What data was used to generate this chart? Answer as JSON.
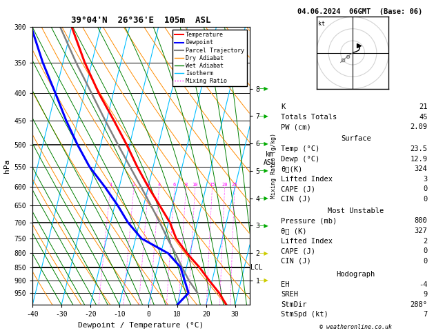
{
  "title_left": "39°04'N  26°36'E  105m  ASL",
  "title_right": "04.06.2024  06GMT  (Base: 06)",
  "xlabel": "Dewpoint / Temperature (°C)",
  "ylabel_left": "hPa",
  "ylabel_right_top": "km",
  "ylabel_right_bottom": "ASL",
  "ylabel_mixing": "Mixing Ratio (g/kg)",
  "pressure_levels": [
    300,
    350,
    400,
    450,
    500,
    550,
    600,
    650,
    700,
    750,
    800,
    850,
    900,
    950
  ],
  "temp_color": "#ff0000",
  "dewp_color": "#0000ff",
  "parcel_color": "#808080",
  "dry_adiabat_color": "#ff8c00",
  "wet_adiabat_color": "#008000",
  "isotherm_color": "#00bfff",
  "mixing_ratio_color": "#ff00ff",
  "background_color": "#ffffff",
  "xlim": [
    -40,
    35
  ],
  "pmin": 300,
  "pmax": 1000,
  "skew": 45.0,
  "stats": {
    "K": 21,
    "Totals_Totals": 45,
    "PW_cm": 2.09,
    "Surface_Temp": 23.5,
    "Surface_Dewp": 12.9,
    "Surface_theta_e": 324,
    "Surface_LI": 3,
    "Surface_CAPE": 0,
    "Surface_CIN": 0,
    "MU_Pressure": 800,
    "MU_theta_e": 327,
    "MU_LI": 2,
    "MU_CAPE": 0,
    "MU_CIN": 0,
    "EH": -4,
    "SREH": 9,
    "StmDir": 288,
    "StmSpd": 7
  },
  "temp_profile": {
    "pressure": [
      1000,
      950,
      900,
      850,
      800,
      750,
      700,
      650,
      600,
      550,
      500,
      450,
      400,
      350,
      300
    ],
    "temperature": [
      27.0,
      23.5,
      19.0,
      14.5,
      9.0,
      4.0,
      0.5,
      -4.5,
      -10.0,
      -15.5,
      -21.0,
      -27.5,
      -35.0,
      -42.5,
      -50.0
    ]
  },
  "dewp_profile": {
    "pressure": [
      1000,
      950,
      900,
      850,
      800,
      750,
      700,
      650,
      600,
      550,
      500,
      450,
      400,
      350,
      300
    ],
    "temperature": [
      10.0,
      12.9,
      10.5,
      8.0,
      2.5,
      -8.0,
      -14.0,
      -19.0,
      -25.0,
      -32.0,
      -38.0,
      -44.0,
      -50.0,
      -57.0,
      -64.0
    ]
  },
  "parcel_profile": {
    "pressure": [
      950,
      900,
      850,
      800,
      750,
      700,
      650,
      600,
      550,
      500,
      450,
      400,
      350,
      300
    ],
    "temperature": [
      16.0,
      12.0,
      8.5,
      5.0,
      1.0,
      -3.0,
      -7.5,
      -12.5,
      -18.0,
      -24.0,
      -30.5,
      -37.5,
      -45.5,
      -54.0
    ]
  },
  "mixing_ratio_values": [
    1,
    2,
    3,
    4,
    6,
    8,
    10,
    15,
    20,
    25
  ],
  "lcl_pressure": 850,
  "lcl_label": "LCL",
  "km_ticks": [
    1,
    2,
    3,
    4,
    5,
    6,
    7,
    8
  ],
  "hodograph_rings": [
    10,
    20,
    30
  ],
  "hodograph_trace_u": [
    0,
    3,
    5,
    6,
    5
  ],
  "hodograph_trace_v": [
    0,
    1,
    2,
    4,
    6
  ],
  "hodograph_gray_u": [
    0,
    -4,
    -8,
    -10
  ],
  "hodograph_gray_v": [
    0,
    -3,
    -6,
    -8
  ]
}
